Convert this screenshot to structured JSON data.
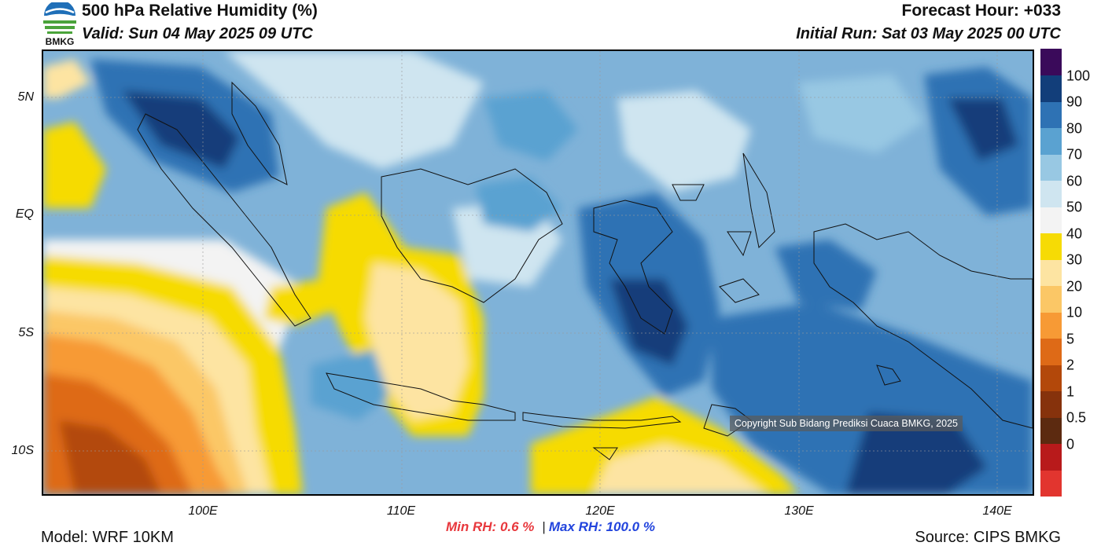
{
  "header": {
    "logo_text": "BMKG",
    "title": "500 hPa Relative Humidity (%)",
    "valid": "Valid: Sun 04 May 2025 09 UTC",
    "forecast_hour": "Forecast Hour: +033",
    "initial_run": "Initial Run: Sat 03 May 2025 00 UTC"
  },
  "map": {
    "lat_labels": [
      "5N",
      "EQ",
      "5S",
      "10S"
    ],
    "lon_labels": [
      "100E",
      "110E",
      "120E",
      "130E",
      "140E"
    ],
    "copyright": "Copyright Sub Bidang Prediksi Cuaca BMKG, 2025"
  },
  "colorbar": {
    "labels": [
      "100",
      "90",
      "80",
      "70",
      "60",
      "50",
      "40",
      "30",
      "20",
      "10",
      "5",
      "2",
      "1",
      "0.5",
      "0"
    ],
    "colors": [
      "#e2352f",
      "#b81a1b",
      "#5c2a10",
      "#86320c",
      "#b3480a",
      "#de6a17",
      "#f79a35",
      "#fbc766",
      "#fde4a2",
      "#f6db05",
      "#f3f3f3",
      "#cfe5f0",
      "#98c8e3",
      "#5aa2d1",
      "#2e72b4",
      "#123e7a",
      "#3a0a5a"
    ]
  },
  "footer": {
    "min_rh": "Min RH:   0.6 %",
    "separator": "|",
    "max_rh": "Max RH: 100.0 %",
    "model": "Model: WRF 10KM",
    "source": "Source: CIPS BMKG"
  }
}
